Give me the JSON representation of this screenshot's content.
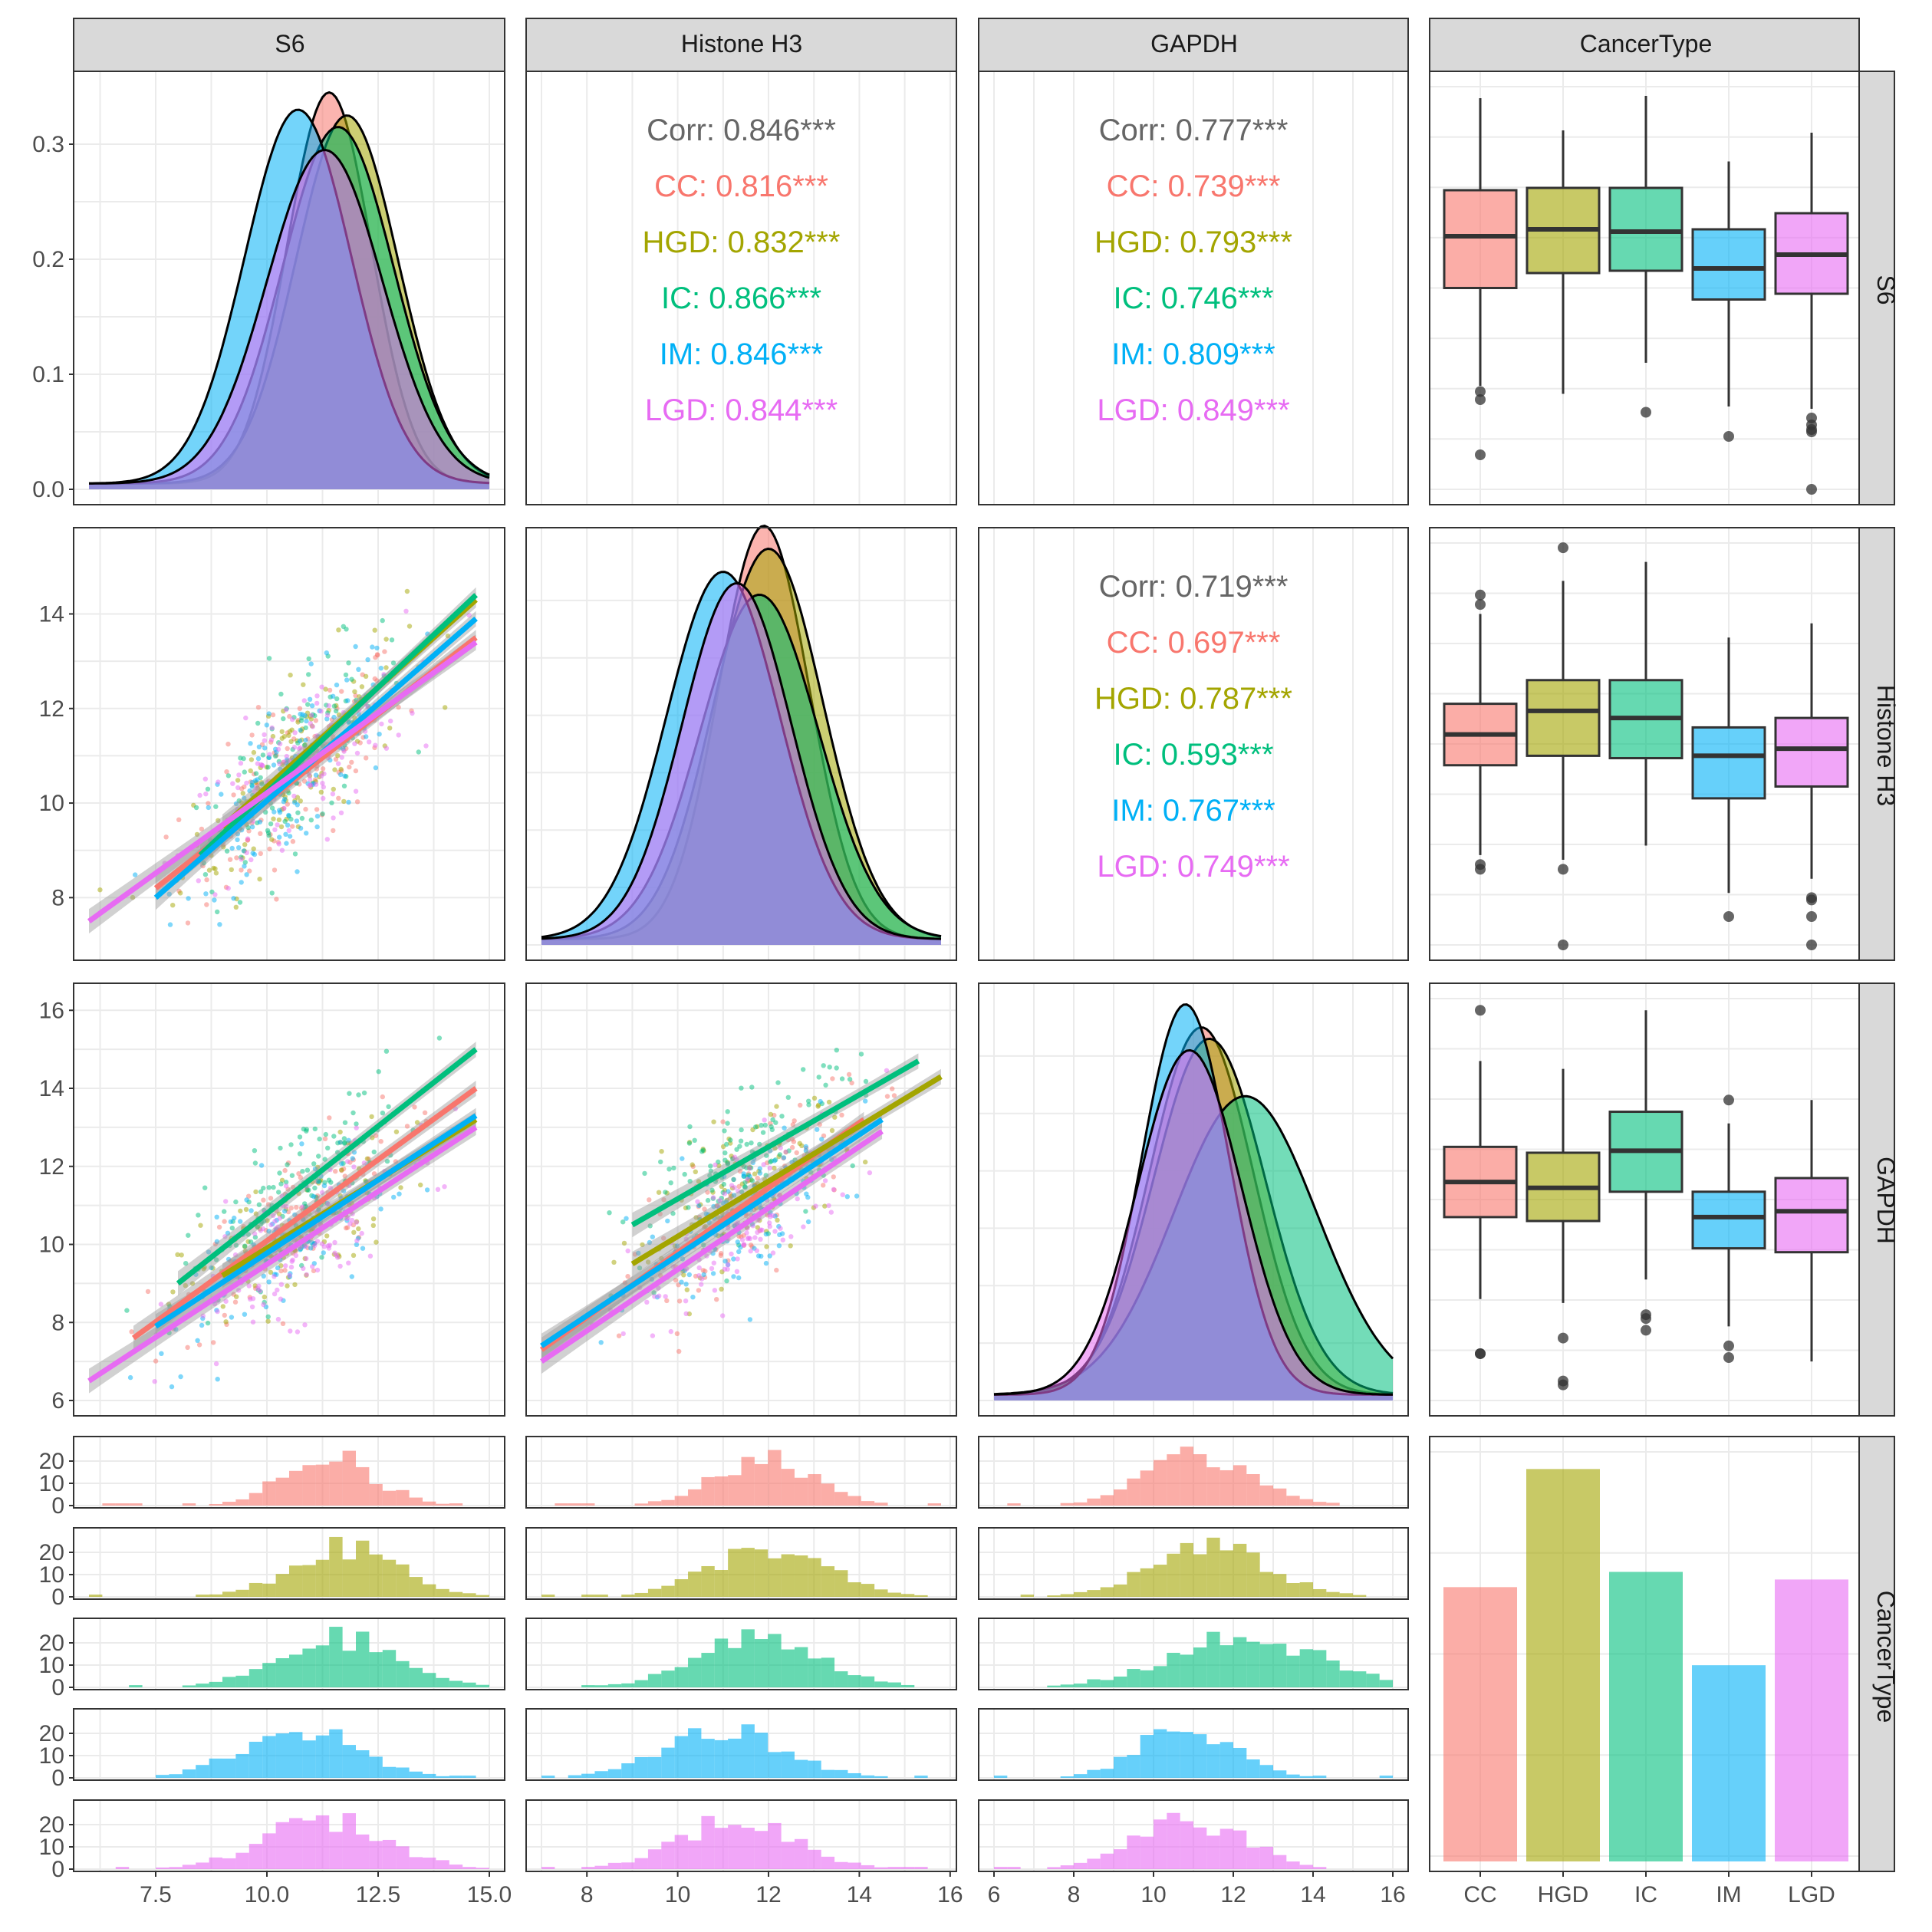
{
  "colors": {
    "CC": "#F8766D",
    "HGD": "#A3A500",
    "IC": "#00BF7D",
    "IM": "#00B0F6",
    "LGD": "#E76BF3",
    "overall": "#666666"
  },
  "variables": [
    "S6",
    "Histone H3",
    "GAPDH",
    "CancerType"
  ],
  "groups": [
    "CC",
    "HGD",
    "IC",
    "IM",
    "LGD"
  ],
  "ticks": {
    "S6_x": [
      "7.5",
      "10.0",
      "12.5",
      "15.0"
    ],
    "H3_x": [
      "8",
      "10",
      "12",
      "14",
      "16"
    ],
    "GAPDH_x": [
      "6",
      "8",
      "10",
      "12",
      "14",
      "16"
    ],
    "CancerType_x": [
      "CC",
      "HGD",
      "IC",
      "IM",
      "LGD"
    ],
    "density_y": [
      "0.0",
      "0.1",
      "0.2",
      "0.3"
    ],
    "H3_y": [
      "8",
      "10",
      "12",
      "14"
    ],
    "GAPDH_y": [
      "6",
      "8",
      "10",
      "12",
      "14",
      "16"
    ],
    "hist_y": [
      "0",
      "10",
      "20"
    ]
  },
  "correlations": {
    "S6_H3": [
      "Corr: 0.846***",
      "CC: 0.816***",
      "HGD: 0.832***",
      "IC: 0.866***",
      "IM: 0.846***",
      "LGD: 0.844***"
    ],
    "S6_GAPDH": [
      "Corr: 0.777***",
      "CC: 0.739***",
      "HGD: 0.793***",
      "IC: 0.746***",
      "IM: 0.809***",
      "LGD: 0.849***"
    ],
    "H3_GAPDH": [
      "Corr: 0.719***",
      "CC: 0.697***",
      "HGD: 0.787***",
      "IC: 0.593***",
      "IM: 0.767***",
      "LGD: 0.749***"
    ]
  },
  "chart_data": {
    "type": "pairs",
    "variables": [
      "S6",
      "Histone H3",
      "GAPDH",
      "CancerType"
    ],
    "density": {
      "S6": {
        "xlim": [
          6,
          15
        ],
        "ylim": [
          0,
          0.35
        ],
        "peaks": {
          "CC": [
            11.4,
            0.34,
            0.95
          ],
          "HGD": [
            11.8,
            0.32,
            1.15
          ],
          "IC": [
            11.6,
            0.31,
            1.25
          ],
          "IM": [
            10.7,
            0.325,
            1.2
          ],
          "LGD": [
            11.3,
            0.29,
            1.3
          ]
        }
      },
      "Histone H3": {
        "xlim": [
          7,
          15.8
        ],
        "peaks": {
          "CC": [
            11.9,
            0.36,
            1.0
          ],
          "HGD": [
            12.0,
            0.34,
            1.2
          ],
          "IC": [
            11.8,
            0.3,
            1.3
          ],
          "IM": [
            11.0,
            0.32,
            1.25
          ],
          "LGD": [
            11.3,
            0.31,
            1.2
          ]
        }
      },
      "GAPDH": {
        "xlim": [
          6,
          16
        ],
        "peaks": {
          "CC": [
            11.2,
            0.32,
            1.3
          ],
          "HGD": [
            11.4,
            0.31,
            1.4
          ],
          "IC": [
            12.3,
            0.26,
            1.8
          ],
          "IM": [
            10.8,
            0.34,
            1.1
          ],
          "LGD": [
            10.9,
            0.3,
            1.3
          ]
        }
      }
    },
    "scatter": {
      "S6_vs_H3": {
        "xlim": [
          6,
          15
        ],
        "ylim": [
          7,
          15.5
        ],
        "fits": {
          "CC": [
            [
              7.5,
              8.2
            ],
            [
              14.7,
              13.5
            ]
          ],
          "HGD": [
            [
              9.0,
              9.5
            ],
            [
              14.7,
              14.3
            ]
          ],
          "IC": [
            [
              8.5,
              8.9
            ],
            [
              14.7,
              14.4
            ]
          ],
          "IM": [
            [
              7.5,
              8.0
            ],
            [
              14.7,
              13.9
            ]
          ],
          "LGD": [
            [
              6.0,
              7.5
            ],
            [
              14.7,
              13.4
            ]
          ]
        }
      },
      "S6_vs_GAPDH": {
        "xlim": [
          6,
          15
        ],
        "ylim": [
          6,
          16.3
        ],
        "fits": {
          "CC": [
            [
              7.0,
              7.6
            ],
            [
              14.7,
              14.0
            ]
          ],
          "HGD": [
            [
              9.0,
              9.2
            ],
            [
              14.7,
              13.2
            ]
          ],
          "IC": [
            [
              8.0,
              9.0
            ],
            [
              14.7,
              15.0
            ]
          ],
          "IM": [
            [
              7.5,
              7.9
            ],
            [
              14.7,
              13.3
            ]
          ],
          "LGD": [
            [
              6.0,
              6.5
            ],
            [
              14.7,
              13.0
            ]
          ]
        }
      },
      "H3_vs_GAPDH": {
        "xlim": [
          7,
          15.8
        ],
        "ylim": [
          6,
          16.3
        ],
        "fits": {
          "CC": [
            [
              7.0,
              7.3
            ],
            [
              14.1,
              13.2
            ]
          ],
          "HGD": [
            [
              9.0,
              9.5
            ],
            [
              15.8,
              14.3
            ]
          ],
          "IC": [
            [
              9.0,
              10.5
            ],
            [
              15.3,
              14.7
            ]
          ],
          "IM": [
            [
              7.0,
              7.4
            ],
            [
              14.5,
              13.2
            ]
          ],
          "LGD": [
            [
              7.0,
              7.0
            ],
            [
              14.5,
              12.9
            ]
          ]
        }
      }
    },
    "boxplots": {
      "S6": {
        "ylim": [
          0,
          0.35
        ],
        "CC": [
          0.175,
          0.22,
          0.26,
          0.09,
          0.34,
          [
            0.085,
            0.078,
            0.03
          ]
        ],
        "HGD": [
          0.188,
          0.226,
          0.262,
          0.083,
          0.312,
          []
        ],
        "IC": [
          0.19,
          0.224,
          0.262,
          0.11,
          0.342,
          [
            0.067
          ]
        ],
        "IM": [
          0.165,
          0.192,
          0.226,
          0.072,
          0.285,
          [
            0.046
          ]
        ],
        "LGD": [
          0.17,
          0.204,
          0.24,
          0.07,
          0.31,
          [
            0.062,
            0.056,
            0.052,
            0.05,
            0.0
          ]
        ]
      },
      "Histone H3": {
        "ylim": [
          7,
          15.5
        ],
        "CC": [
          10.8,
          11.45,
          12.1,
          8.9,
          14.0,
          [
            14.4,
            14.2,
            8.7,
            8.6
          ]
        ],
        "HGD": [
          11.0,
          11.95,
          12.6,
          8.8,
          14.7,
          [
            15.4,
            8.6,
            7.0
          ]
        ],
        "IC": [
          10.95,
          11.8,
          12.6,
          9.1,
          15.1,
          []
        ],
        "IM": [
          10.1,
          11.0,
          11.6,
          8.1,
          13.5,
          [
            7.6
          ]
        ],
        "LGD": [
          10.35,
          11.15,
          11.8,
          8.4,
          13.8,
          [
            8.0,
            7.95,
            7.6,
            7.0
          ]
        ]
      },
      "GAPDH": {
        "ylim": [
          6,
          16.3
        ],
        "CC": [
          10.7,
          11.6,
          12.5,
          8.6,
          14.7,
          [
            16.0,
            7.2,
            7.2
          ]
        ],
        "HGD": [
          10.6,
          11.45,
          12.35,
          8.5,
          14.5,
          [
            7.6,
            6.5,
            6.4
          ]
        ],
        "IC": [
          11.35,
          12.4,
          13.4,
          9.1,
          16.0,
          [
            8.2,
            8.1,
            7.8
          ]
        ],
        "IM": [
          9.9,
          10.7,
          11.35,
          7.9,
          13.1,
          [
            13.7,
            7.4,
            7.1
          ]
        ],
        "LGD": [
          9.8,
          10.85,
          11.7,
          7.0,
          13.7,
          []
        ]
      }
    },
    "bar_counts": {
      "CC": 144,
      "HGD": 206,
      "IC": 152,
      "IM": 103,
      "LGD": 148
    },
    "histograms": {
      "bins_shown": true,
      "ylim": [
        0,
        25
      ]
    }
  }
}
